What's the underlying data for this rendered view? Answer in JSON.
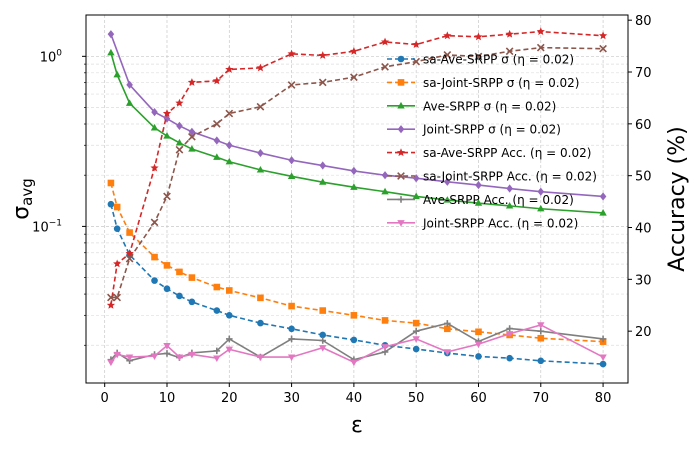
{
  "chart_data": {
    "type": "line",
    "xlabel": "ε",
    "ylabel_left": "σavg",
    "ylabel_left_main": "σ",
    "ylabel_left_sub": "avg",
    "ylabel_right": "Accuracy (%)",
    "xlim": [
      -3,
      84
    ],
    "ylim_left": [
      0.012,
      1.75
    ],
    "yscale_left": "log",
    "ylim_right": [
      10,
      81
    ],
    "grid": true,
    "legend_position": "center-right",
    "x_ticks": [
      0,
      10,
      20,
      30,
      40,
      50,
      60,
      70,
      80
    ],
    "x_tick_labels": [
      "0",
      "10",
      "20",
      "30",
      "40",
      "50",
      "60",
      "70",
      "80"
    ],
    "y_left_ticks": [
      0.1,
      1
    ],
    "y_left_tick_labels_base": [
      "10",
      "10"
    ],
    "y_left_tick_labels_exp": [
      "−1",
      "0"
    ],
    "y_right_ticks": [
      20,
      30,
      40,
      50,
      60,
      70,
      80
    ],
    "y_right_tick_labels": [
      "20",
      "30",
      "40",
      "50",
      "60",
      "70",
      "80"
    ],
    "series": [
      {
        "name": "sa-Ave-SRPP σ (η = 0.02)",
        "axis": "left",
        "color": "#1f77b4",
        "dash": true,
        "marker": "circle",
        "x": [
          1,
          2,
          4,
          8,
          10,
          12,
          14,
          18,
          20,
          25,
          30,
          35,
          40,
          45,
          50,
          55,
          60,
          65,
          70,
          80
        ],
        "y": [
          0.135,
          0.097,
          0.068,
          0.048,
          0.043,
          0.039,
          0.036,
          0.032,
          0.03,
          0.027,
          0.025,
          0.023,
          0.0215,
          0.02,
          0.019,
          0.018,
          0.0172,
          0.0168,
          0.0162,
          0.0155
        ]
      },
      {
        "name": "sa-Joint-SRPP σ (η = 0.02)",
        "axis": "left",
        "color": "#ff7f0e",
        "dash": true,
        "marker": "square",
        "x": [
          1,
          2,
          4,
          8,
          10,
          12,
          14,
          18,
          20,
          25,
          30,
          35,
          40,
          45,
          50,
          55,
          60,
          65,
          70,
          80
        ],
        "y": [
          0.18,
          0.13,
          0.092,
          0.066,
          0.059,
          0.054,
          0.05,
          0.044,
          0.042,
          0.038,
          0.034,
          0.032,
          0.03,
          0.028,
          0.027,
          0.025,
          0.024,
          0.023,
          0.022,
          0.021
        ]
      },
      {
        "name": "Ave-SRPP σ (η = 0.02)",
        "axis": "left",
        "color": "#2ca02c",
        "dash": false,
        "marker": "triangle-up",
        "x": [
          1,
          2,
          4,
          8,
          10,
          12,
          14,
          18,
          20,
          25,
          30,
          35,
          40,
          45,
          50,
          55,
          60,
          65,
          70,
          80
        ],
        "y": [
          1.05,
          0.78,
          0.53,
          0.38,
          0.34,
          0.31,
          0.285,
          0.255,
          0.24,
          0.215,
          0.197,
          0.182,
          0.17,
          0.16,
          0.15,
          0.143,
          0.137,
          0.132,
          0.127,
          0.12
        ]
      },
      {
        "name": "Joint-SRPP σ (η = 0.02)",
        "axis": "left",
        "color": "#9467bd",
        "dash": false,
        "marker": "diamond",
        "x": [
          1,
          4,
          8,
          10,
          12,
          14,
          18,
          20,
          25,
          30,
          35,
          40,
          45,
          50,
          55,
          60,
          65,
          70,
          80
        ],
        "y": [
          1.35,
          0.68,
          0.47,
          0.43,
          0.39,
          0.36,
          0.32,
          0.3,
          0.27,
          0.245,
          0.228,
          0.212,
          0.2,
          0.192,
          0.183,
          0.175,
          0.167,
          0.16,
          0.15
        ]
      },
      {
        "name": "sa-Ave-SRPP Acc. (η = 0.02)",
        "axis": "right",
        "color": "#d62728",
        "dash": true,
        "marker": "star",
        "x": [
          1,
          2,
          4,
          8,
          10,
          12,
          14,
          18,
          20,
          25,
          30,
          35,
          40,
          45,
          50,
          55,
          60,
          65,
          70,
          80
        ],
        "y": [
          25,
          33,
          35,
          51.5,
          62,
          64,
          68,
          68.3,
          70.5,
          70.8,
          73.5,
          73.2,
          74,
          75.8,
          75.3,
          77,
          76.8,
          77.3,
          77.8,
          77
        ]
      },
      {
        "name": "sa-Joint-SRPP Acc. (η = 0.02)",
        "axis": "right",
        "color": "#8c564b",
        "dash": true,
        "marker": "x",
        "x": [
          1,
          2,
          4,
          8,
          10,
          12,
          14,
          18,
          20,
          25,
          30,
          35,
          40,
          45,
          50,
          55,
          60,
          65,
          70,
          80
        ],
        "y": [
          26.5,
          26.5,
          34,
          41,
          46,
          55,
          57.5,
          60,
          62,
          63.3,
          67.5,
          68,
          69,
          71,
          72,
          73.3,
          73,
          74,
          74.7,
          74.5
        ]
      },
      {
        "name": "Ave-SRPP Acc. (η = 0.02)",
        "axis": "right",
        "color": "#7f7f7f",
        "dash": false,
        "marker": "plus",
        "x": [
          1,
          2,
          4,
          8,
          10,
          12,
          14,
          18,
          20,
          25,
          30,
          35,
          40,
          45,
          50,
          55,
          60,
          65,
          70,
          80
        ],
        "y": [
          14.5,
          15.8,
          14.3,
          15.5,
          15.7,
          14.9,
          15.8,
          16.2,
          18.5,
          15,
          18.5,
          18.2,
          14.5,
          16,
          20,
          21.5,
          18,
          20.5,
          20,
          18.5
        ]
      },
      {
        "name": "Joint-SRPP Acc. (η = 0.02)",
        "axis": "right",
        "color": "#e377c2",
        "dash": false,
        "marker": "triangle-down",
        "x": [
          1,
          2,
          4,
          8,
          10,
          12,
          14,
          18,
          20,
          25,
          30,
          35,
          40,
          45,
          50,
          55,
          60,
          65,
          70,
          80
        ],
        "y": [
          14,
          15.5,
          15,
          15.2,
          17.2,
          15,
          15.5,
          14.8,
          16.5,
          15,
          15,
          16.8,
          14,
          17,
          18.5,
          16,
          17.5,
          19.5,
          21.2,
          15
        ]
      }
    ]
  }
}
